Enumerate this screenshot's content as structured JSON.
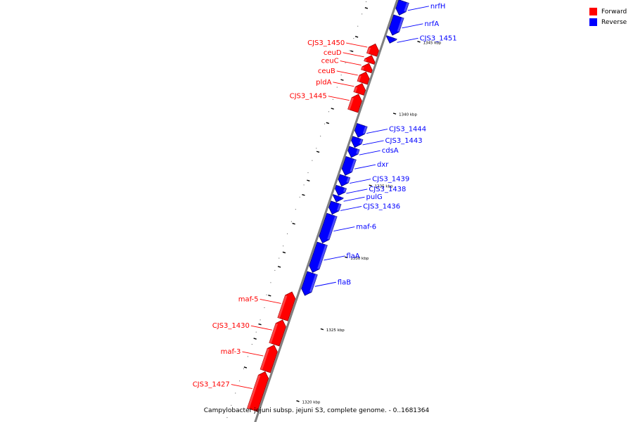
{
  "caption": "Campylobacter jejuni subsp. jejuni S3, complete genome. - 0..1681364",
  "legend": [
    {
      "label": "Forward",
      "color": "#ff0000"
    },
    {
      "label": "Reverse",
      "color": "#0000ff"
    }
  ],
  "colors": {
    "forward": "#ff0000",
    "reverse": "#0000ff",
    "backbone": "#808080"
  },
  "chart_data": {
    "type": "linear-genome-map",
    "position_range_kbp": [
      1318.5,
      1347.2
    ],
    "tick_labels": [
      {
        "pos": 1345,
        "label": "1345 kbp"
      },
      {
        "pos": 1340,
        "label": "1340 kbp"
      },
      {
        "pos": 1335,
        "label": "1335 kbp"
      },
      {
        "pos": 1330,
        "label": "1330 kbp"
      },
      {
        "pos": 1325,
        "label": "1325 kbp"
      },
      {
        "pos": 1320,
        "label": "1320 kbp"
      }
    ],
    "major_ticks_kbp": [
      1346,
      1344,
      1343,
      1341,
      1339,
      1338,
      1336,
      1334,
      1333,
      1331,
      1329,
      1328,
      1326,
      1324,
      1323,
      1321
    ],
    "genes": [
      {
        "name": "nrfH",
        "strand": "reverse",
        "start": 1346.25,
        "end": 1347.2
      },
      {
        "name": "nrfA",
        "strand": "reverse",
        "start": 1344.85,
        "end": 1346.15
      },
      {
        "name": "CJS3_1451",
        "strand": "reverse",
        "start": 1344.3,
        "end": 1344.7
      },
      {
        "name": "CJS3_1450",
        "strand": "forward",
        "start": 1343.2,
        "end": 1343.95
      },
      {
        "name": "ceuD",
        "strand": "forward",
        "start": 1342.65,
        "end": 1343.15
      },
      {
        "name": "ceuC",
        "strand": "forward",
        "start": 1342.05,
        "end": 1342.6
      },
      {
        "name": "ceuB",
        "strand": "forward",
        "start": 1341.25,
        "end": 1342.0
      },
      {
        "name": "pldA",
        "strand": "forward",
        "start": 1340.5,
        "end": 1341.2
      },
      {
        "name": "CJS3_1445",
        "strand": "forward",
        "start": 1339.3,
        "end": 1340.45
      },
      {
        "name": "CJS3_1444",
        "strand": "reverse",
        "start": 1337.75,
        "end": 1338.6
      },
      {
        "name": "CJS3_1443",
        "strand": "reverse",
        "start": 1337.05,
        "end": 1337.7
      },
      {
        "name": "cdsA",
        "strand": "reverse",
        "start": 1336.35,
        "end": 1337.0
      },
      {
        "name": "dxr",
        "strand": "reverse",
        "start": 1335.1,
        "end": 1336.3
      },
      {
        "name": "CJS3_1439",
        "strand": "reverse",
        "start": 1334.35,
        "end": 1335.05
      },
      {
        "name": "CJS3_1438",
        "strand": "reverse",
        "start": 1333.7,
        "end": 1334.3
      },
      {
        "name": "pulG",
        "strand": "reverse",
        "start": 1333.25,
        "end": 1333.65
      },
      {
        "name": "CJS3_1436",
        "strand": "reverse",
        "start": 1332.4,
        "end": 1333.2
      },
      {
        "name": "maf-6",
        "strand": "reverse",
        "start": 1330.4,
        "end": 1332.35
      },
      {
        "name": "flaA",
        "strand": "reverse",
        "start": 1328.35,
        "end": 1330.35
      },
      {
        "name": "flaB",
        "strand": "reverse",
        "start": 1326.75,
        "end": 1328.3
      },
      {
        "name": "maf-5",
        "strand": "forward",
        "start": 1324.8,
        "end": 1326.7
      },
      {
        "name": "CJS3_1430",
        "strand": "forward",
        "start": 1323.05,
        "end": 1324.75
      },
      {
        "name": "maf-3",
        "strand": "forward",
        "start": 1321.2,
        "end": 1323.0
      },
      {
        "name": "CJS3_1427",
        "strand": "forward",
        "start": 1318.5,
        "end": 1321.15
      }
    ]
  }
}
